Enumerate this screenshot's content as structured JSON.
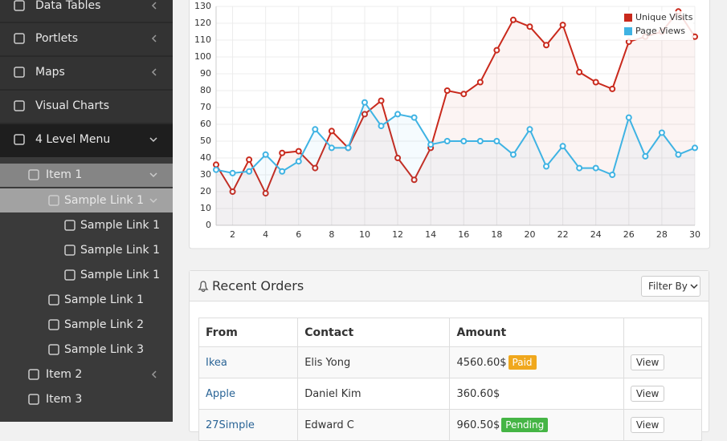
{
  "sidebar": {
    "items": [
      "Data Tables",
      "Portlets",
      "Maps",
      "Visual Charts",
      "4 Level Menu",
      "Item 1",
      "Sample Link 1",
      "Sample Link 1",
      "Sample Link 1",
      "Sample Link 1",
      "Sample Link 1",
      "Sample Link 2",
      "Sample Link 3",
      "Item 2",
      "Item 3"
    ]
  },
  "chart_data": {
    "type": "line",
    "x": [
      1,
      2,
      3,
      4,
      5,
      6,
      7,
      8,
      9,
      10,
      11,
      12,
      13,
      14,
      15,
      16,
      17,
      18,
      19,
      20,
      21,
      22,
      23,
      24,
      25,
      26,
      27,
      28,
      29,
      30
    ],
    "xlim": [
      1,
      30
    ],
    "xticks": [
      2,
      4,
      6,
      8,
      10,
      12,
      14,
      16,
      18,
      20,
      22,
      24,
      26,
      28,
      30
    ],
    "ylim": [
      0,
      130
    ],
    "yticks": [
      0,
      10,
      20,
      30,
      40,
      50,
      60,
      70,
      80,
      90,
      100,
      110,
      120,
      130
    ],
    "grid": true,
    "legend": "top-right",
    "series": [
      {
        "name": "Unique Visits",
        "color": "#c9291c",
        "values": [
          36,
          20,
          39,
          19,
          43,
          44,
          34,
          56,
          46,
          66,
          74,
          40,
          27,
          46,
          80,
          78,
          85,
          104,
          122,
          118,
          107,
          119,
          91,
          85,
          81,
          109,
          112,
          115,
          127,
          112
        ]
      },
      {
        "name": "Page Views",
        "color": "#3fb3e3",
        "values": [
          33,
          31,
          32,
          42,
          32,
          38,
          57,
          46,
          46,
          73,
          59,
          66,
          64,
          48,
          50,
          50,
          50,
          50,
          42,
          57,
          35,
          47,
          34,
          34,
          30,
          64,
          41,
          55,
          42,
          46
        ]
      }
    ]
  },
  "orders": {
    "title": "Recent Orders",
    "filter": "Filter By",
    "columns": [
      "From",
      "Contact",
      "Amount",
      ""
    ],
    "rows": [
      {
        "from": "Ikea",
        "contact": "Elis Yong",
        "amount": "4560.60$",
        "status": "Paid",
        "action": "View"
      },
      {
        "from": "Apple",
        "contact": "Daniel Kim",
        "amount": "360.60$",
        "status": null,
        "action": "View"
      },
      {
        "from": "27Simple",
        "contact": "Edward C",
        "amount": "960.50$",
        "status": "Pending",
        "action": "View"
      }
    ]
  }
}
